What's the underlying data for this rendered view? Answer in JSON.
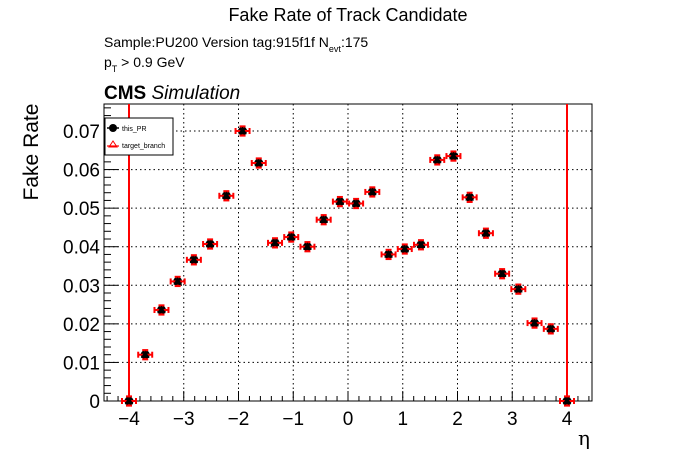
{
  "chart_data": {
    "type": "scatter",
    "title": "Fake Rate of Track Candidate",
    "subtitle_lines": [
      "Sample:PU200   Version tag:915f1f  N_evt:175",
      "p_T > 0.9 GeV"
    ],
    "label": "CMS Simulation",
    "xlabel": "η",
    "ylabel": "Fake Rate",
    "xlim": [
      -4.45,
      4.45
    ],
    "ylim": [
      0,
      0.077
    ],
    "xticks": [
      -4,
      -3,
      -2,
      -1,
      0,
      1,
      2,
      3,
      4
    ],
    "xtick_labels": [
      "−4",
      "−3",
      "−2",
      "−1",
      "0",
      "1",
      "2",
      "3",
      "4"
    ],
    "yticks": [
      0,
      0.01,
      0.02,
      0.03,
      0.04,
      0.05,
      0.06,
      0.07
    ],
    "ytick_labels": [
      "0",
      "0.01",
      "0.02",
      "0.03",
      "0.04",
      "0.05",
      "0.06",
      "0.07"
    ],
    "grid": true,
    "legend_position": "top-left",
    "vertical_lines": [
      {
        "x": -4.0,
        "color": "#ff0000"
      },
      {
        "x": 4.0,
        "color": "#ff0000"
      }
    ],
    "x": [
      -4.0,
      -3.704,
      -3.407,
      -3.111,
      -2.815,
      -2.519,
      -2.222,
      -1.926,
      -1.63,
      -1.333,
      -1.037,
      -0.741,
      -0.444,
      -0.148,
      0.148,
      0.444,
      0.741,
      1.037,
      1.333,
      1.63,
      1.926,
      2.222,
      2.519,
      2.815,
      3.111,
      3.407,
      3.704,
      4.0
    ],
    "series": [
      {
        "name": "this_PR",
        "marker": "circle",
        "color": "#000000",
        "values": [
          0.0,
          0.012,
          0.0236,
          0.031,
          0.0366,
          0.0407,
          0.0532,
          0.07,
          0.0617,
          0.041,
          0.0425,
          0.04,
          0.047,
          0.0517,
          0.0512,
          0.0542,
          0.038,
          0.0394,
          0.0405,
          0.0625,
          0.0635,
          0.0528,
          0.0435,
          0.033,
          0.029,
          0.0202,
          0.0187,
          0.0
        ],
        "yerr": 0.0012
      },
      {
        "name": "target_branch",
        "marker": "open-triangle",
        "color": "#ff0000",
        "values": [
          0.0,
          0.012,
          0.0236,
          0.031,
          0.0366,
          0.0407,
          0.0532,
          0.07,
          0.0617,
          0.041,
          0.0425,
          0.04,
          0.047,
          0.0517,
          0.0512,
          0.0542,
          0.038,
          0.0394,
          0.0405,
          0.0625,
          0.0635,
          0.0528,
          0.0435,
          0.033,
          0.029,
          0.0202,
          0.0187,
          0.0
        ],
        "yerr": 0.0012
      }
    ]
  },
  "header": {
    "title": "Fake Rate of Track Candidate",
    "sample_text": "Sample:PU200   Version tag:915f1f  N",
    "nevt_sub": "evt",
    "nevt_value": ":175",
    "pt_text_p": "p",
    "pt_sub": "T",
    "pt_rest": " > 0.9 GeV",
    "cms_bold": "CMS",
    "cms_italic": " Simulation"
  },
  "axes": {
    "ylabel": "Fake Rate",
    "xlabel": "η"
  },
  "legend": {
    "items": [
      {
        "label": "this_PR"
      },
      {
        "label": "target_branch"
      }
    ]
  },
  "colors": {
    "this_PR": "#000000",
    "target_branch": "#ff0000",
    "frame": "#000000",
    "grid": "#000000"
  }
}
